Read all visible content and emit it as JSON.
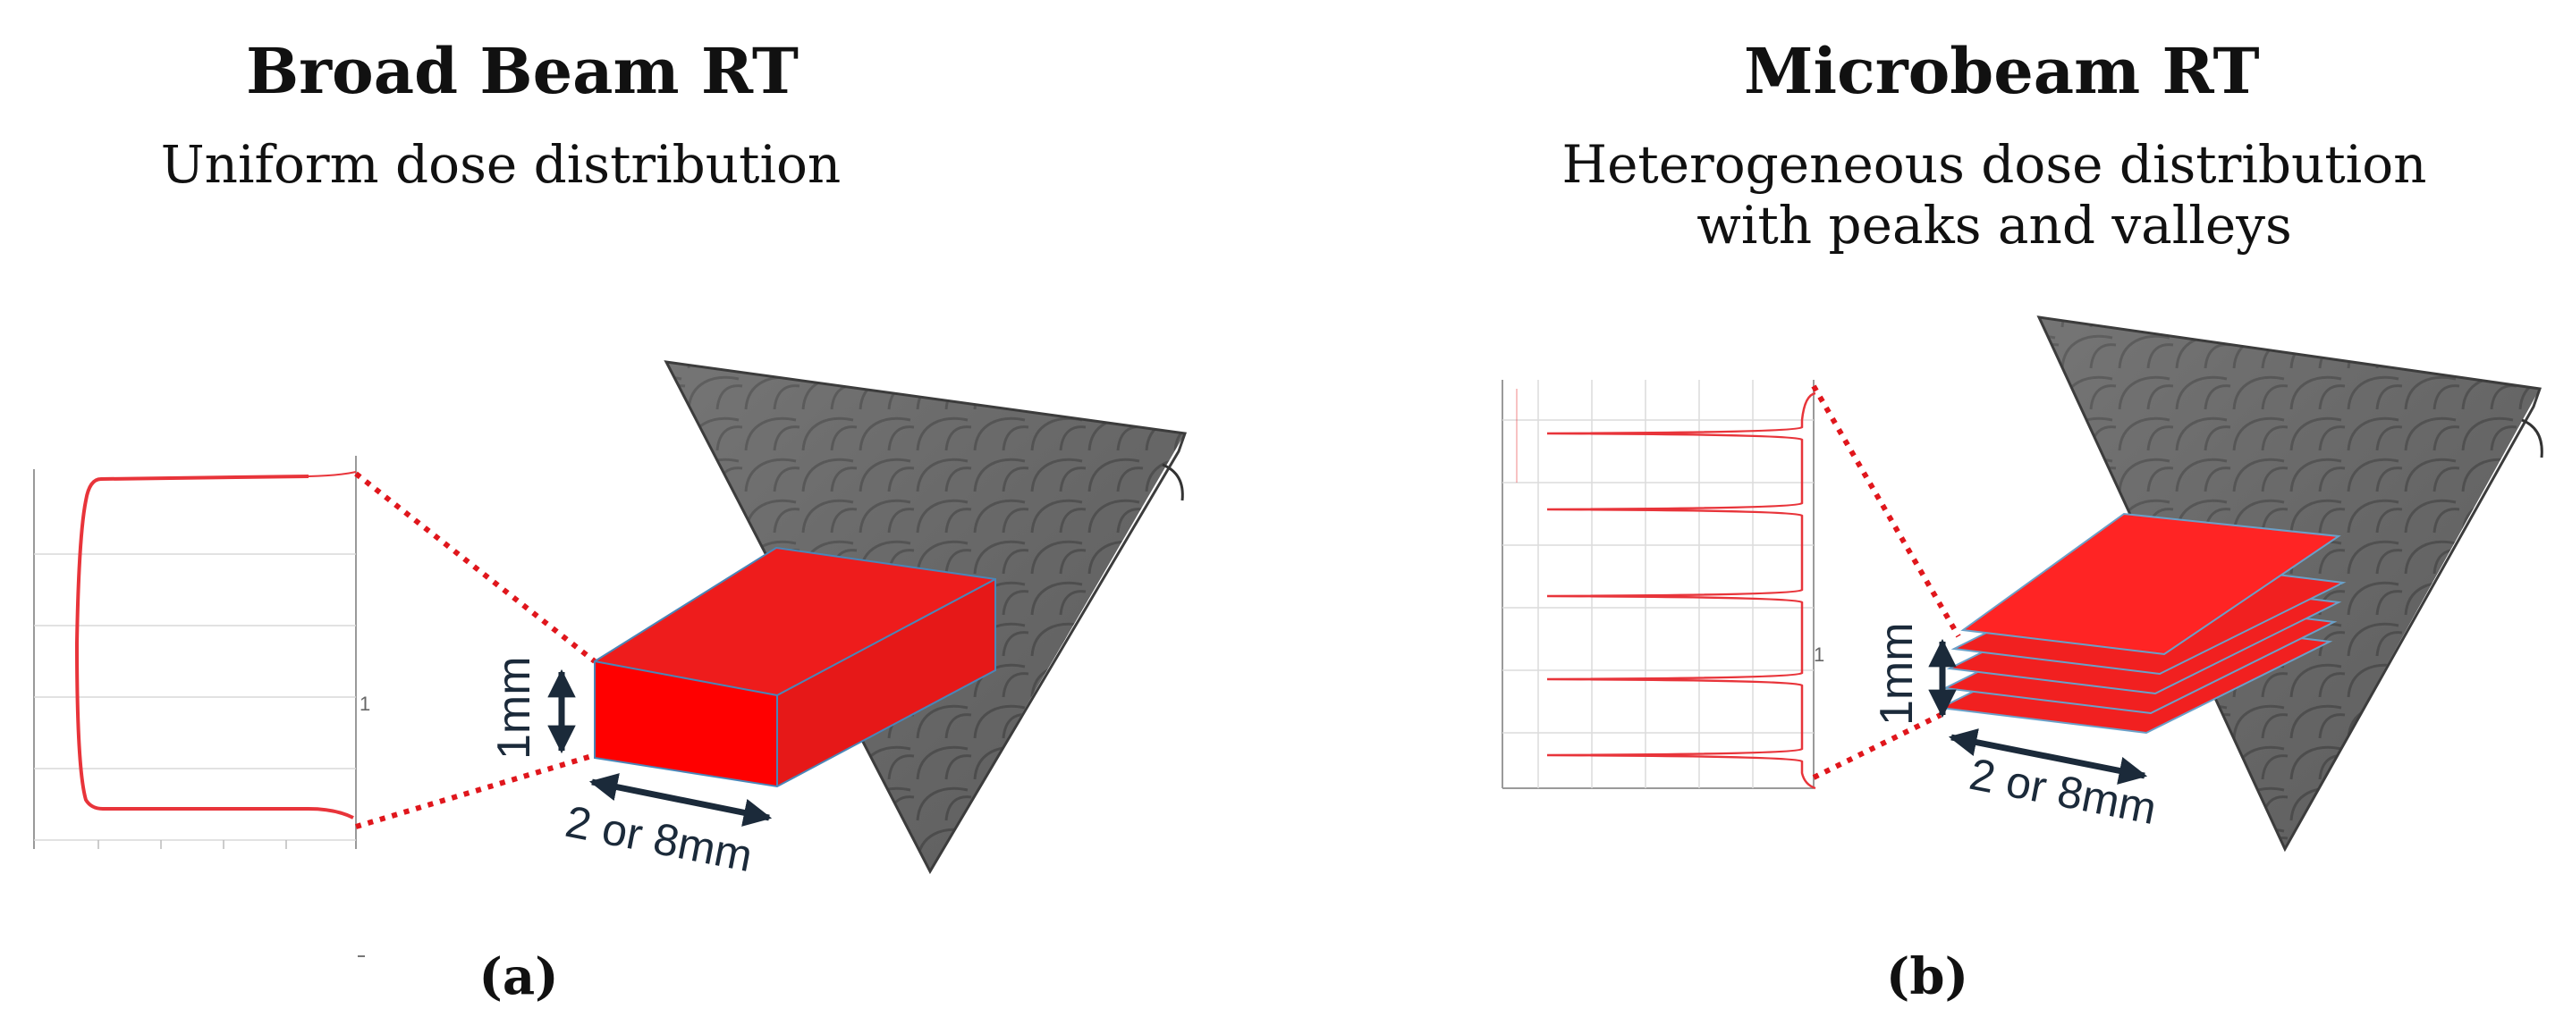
{
  "panels": [
    {
      "title": "Broad Beam RT",
      "subtitle": "Uniform dose distribution",
      "label": "(a)",
      "height_label": "1mm",
      "width_label": "2 or 8mm",
      "plot_tick": "1"
    },
    {
      "title": "Microbeam RT",
      "subtitle_line1": "Heterogeneous dose distribution",
      "subtitle_line2": "with peaks and valleys",
      "label": "(b)",
      "height_label": "1mm",
      "width_label": "2 or 8mm",
      "plot_tick": "1"
    }
  ],
  "colors": {
    "beam_red": "#ee1c1c",
    "beam_red_dark": "#c81010",
    "dose_curve": "#e8343a",
    "tissue_gray": "#6e6e6e",
    "arrow": "#1b2a3a"
  }
}
